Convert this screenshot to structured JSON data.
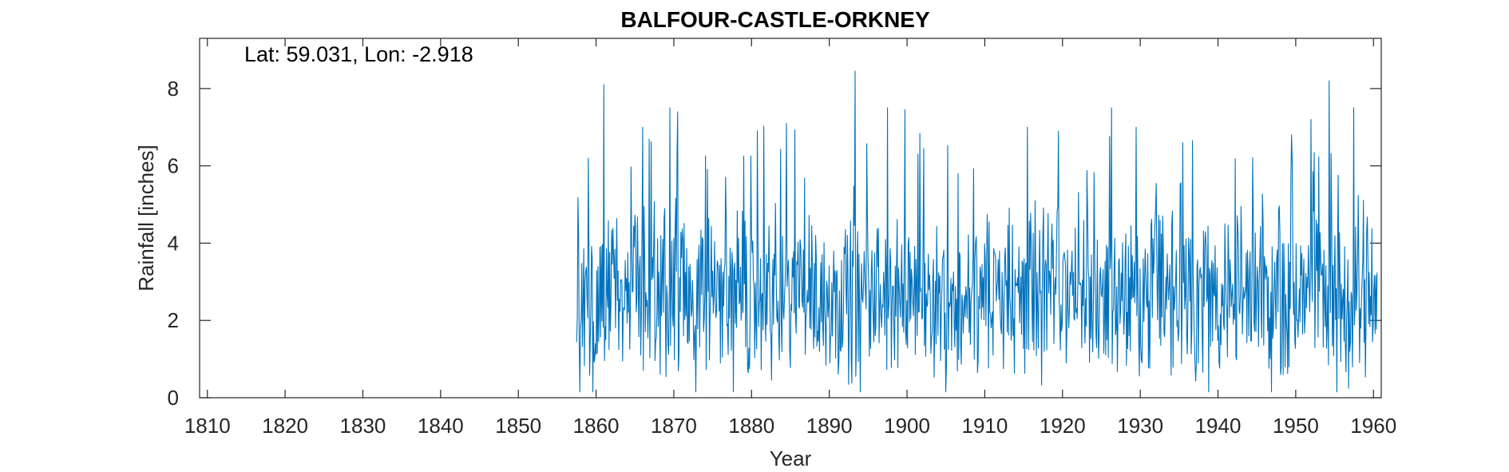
{
  "chart_data": {
    "type": "line",
    "title": "BALFOUR-CASTLE-ORKNEY",
    "annotation": "Lat: 59.031, Lon: -2.918",
    "xlabel": "Year",
    "ylabel": "Rainfall [inches]",
    "xlim": [
      1809,
      1961
    ],
    "ylim": [
      0,
      9.3
    ],
    "x_ticks": [
      1810,
      1820,
      1830,
      1840,
      1850,
      1860,
      1870,
      1880,
      1890,
      1900,
      1910,
      1920,
      1930,
      1940,
      1950,
      1960
    ],
    "x_tick_labels": [
      "1810",
      "1820",
      "1830",
      "1840",
      "1850",
      "1860",
      "1870",
      "1880",
      "1890",
      "1900",
      "1910",
      "1920",
      "1930",
      "1940",
      "1950",
      "1960"
    ],
    "y_ticks": [
      0,
      2,
      4,
      6,
      8
    ],
    "y_tick_labels": [
      "0",
      "2",
      "4",
      "6",
      "8"
    ],
    "grid": false,
    "color": "#0072BD",
    "series": [
      {
        "x_start": 1857.5,
        "x_end": 1960.5,
        "step": 0.0833,
        "min": 0.05,
        "max": 8.45,
        "peaks": [
          {
            "x": 1859.0,
            "y": 6.2
          },
          {
            "x": 1861.0,
            "y": 8.1
          },
          {
            "x": 1866.0,
            "y": 7.0
          },
          {
            "x": 1869.5,
            "y": 7.5
          },
          {
            "x": 1870.5,
            "y": 7.4
          },
          {
            "x": 1884.5,
            "y": 7.1
          },
          {
            "x": 1893.3,
            "y": 8.45
          },
          {
            "x": 1897.5,
            "y": 7.5
          },
          {
            "x": 1915.5,
            "y": 7.0
          },
          {
            "x": 1919.5,
            "y": 6.9
          },
          {
            "x": 1926.3,
            "y": 7.5
          },
          {
            "x": 1929.5,
            "y": 7.0
          },
          {
            "x": 1935.5,
            "y": 6.6
          },
          {
            "x": 1949.5,
            "y": 6.8
          },
          {
            "x": 1952.0,
            "y": 7.2
          },
          {
            "x": 1954.3,
            "y": 8.2
          },
          {
            "x": 1957.5,
            "y": 7.5
          }
        ]
      }
    ]
  }
}
